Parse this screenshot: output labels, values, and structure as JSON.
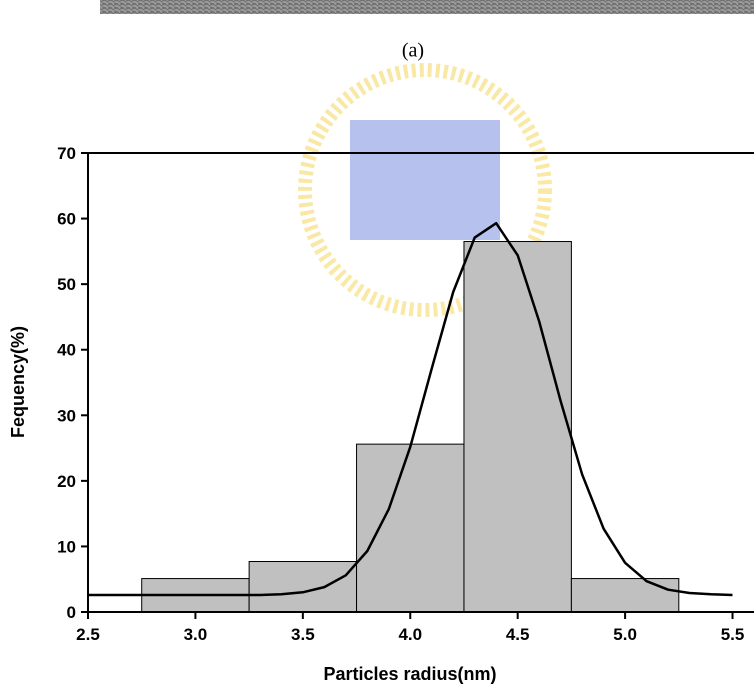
{
  "caption": "(a)",
  "chart_data": {
    "type": "histogram",
    "bins": [
      2.75,
      3.25,
      3.75,
      4.25,
      4.75,
      5.25
    ],
    "counts": [
      5.1,
      7.7,
      25.6,
      56.5,
      5.1
    ],
    "bar_color": "#c0c0c0",
    "fit": {
      "color": "#000000",
      "x": [
        2.5,
        2.6,
        2.7,
        2.8,
        2.9,
        3.0,
        3.1,
        3.2,
        3.3,
        3.4,
        3.5,
        3.6,
        3.7,
        3.8,
        3.9,
        4.0,
        4.1,
        4.2,
        4.3,
        4.4,
        4.5,
        4.6,
        4.7,
        4.8,
        4.9,
        5.0,
        5.1,
        5.2,
        5.3,
        5.4,
        5.5
      ],
      "values": [
        2.6,
        2.6,
        2.6,
        2.6,
        2.6,
        2.6,
        2.6,
        2.6,
        2.6,
        2.7,
        3.0,
        3.8,
        5.6,
        9.3,
        15.7,
        25.2,
        37.1,
        48.8,
        57.1,
        59.3,
        54.4,
        44.3,
        32.2,
        21.0,
        12.7,
        7.5,
        4.7,
        3.4,
        2.9,
        2.7,
        2.6
      ]
    },
    "xlim": [
      2.5,
      5.6
    ],
    "ylim": [
      0,
      70
    ],
    "xticks": [
      2.5,
      {
        "value": 3,
        "label": "3.0"
      },
      3.5,
      {
        "value": 4,
        "label": "4.0"
      },
      4.5,
      {
        "value": 5,
        "label": "5.0"
      },
      5.5
    ],
    "yticks": [
      0,
      10,
      20,
      30,
      40,
      50,
      60,
      70
    ],
    "xlabel": "Particles radius(nm)",
    "ylabel": "Fequency(%)"
  }
}
